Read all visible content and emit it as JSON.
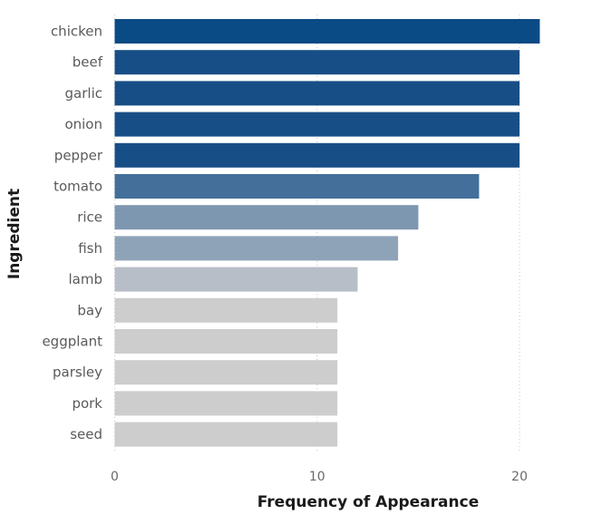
{
  "chart_data": {
    "type": "bar",
    "orientation": "horizontal",
    "categories": [
      "chicken",
      "beef",
      "garlic",
      "onion",
      "pepper",
      "tomato",
      "rice",
      "fish",
      "lamb",
      "bay",
      "eggplant",
      "parsley",
      "pork",
      "seed"
    ],
    "values": [
      21,
      20,
      20,
      20,
      20,
      18,
      15,
      14,
      12,
      11,
      11,
      11,
      11,
      11
    ],
    "colors": [
      "#0a4a85",
      "#184e86",
      "#184e86",
      "#184e86",
      "#184e86",
      "#436f9a",
      "#7e97b1",
      "#8fa3b8",
      "#b7bec8",
      "#cdcdcd",
      "#cdcdcd",
      "#cdcdcd",
      "#cdcdcd",
      "#cdcdcd"
    ],
    "xlabel": "Frequency of Appearance",
    "ylabel": "Ingredient",
    "xlim": [
      0,
      21
    ],
    "xticks": [
      0,
      10,
      20
    ],
    "grid": "vertical-dotted"
  }
}
